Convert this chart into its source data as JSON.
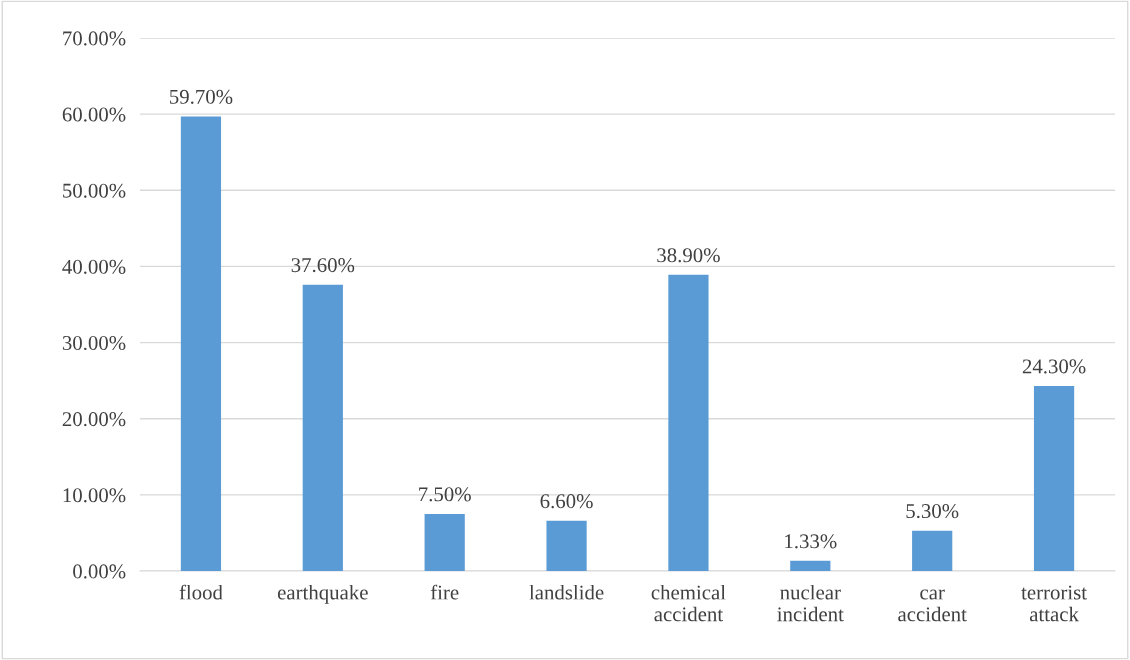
{
  "chart_data": {
    "type": "bar",
    "categories": [
      "flood",
      "earthquake",
      "fire",
      "landslide",
      "chemical\naccident",
      "nuclear\nincident",
      "car\naccident",
      "terrorist\nattack"
    ],
    "values": [
      59.7,
      37.6,
      7.5,
      6.6,
      38.9,
      1.33,
      5.3,
      24.3
    ],
    "value_labels": [
      "59.70%",
      "37.60%",
      "7.50%",
      "6.60%",
      "38.90%",
      "1.33%",
      "5.30%",
      "24.30%"
    ],
    "color": "#5b9bd5",
    "ylim": [
      0,
      70
    ],
    "yticks": [
      {
        "value": 0,
        "label": "0.00%"
      },
      {
        "value": 10,
        "label": "10.00%"
      },
      {
        "value": 20,
        "label": "20.00%"
      },
      {
        "value": 30,
        "label": "30.00%"
      },
      {
        "value": 40,
        "label": "40.00%"
      },
      {
        "value": 50,
        "label": "50.00%"
      },
      {
        "value": 60,
        "label": "60.00%"
      },
      {
        "value": 70,
        "label": "70.00%"
      }
    ],
    "grid": "y",
    "legend": false
  }
}
